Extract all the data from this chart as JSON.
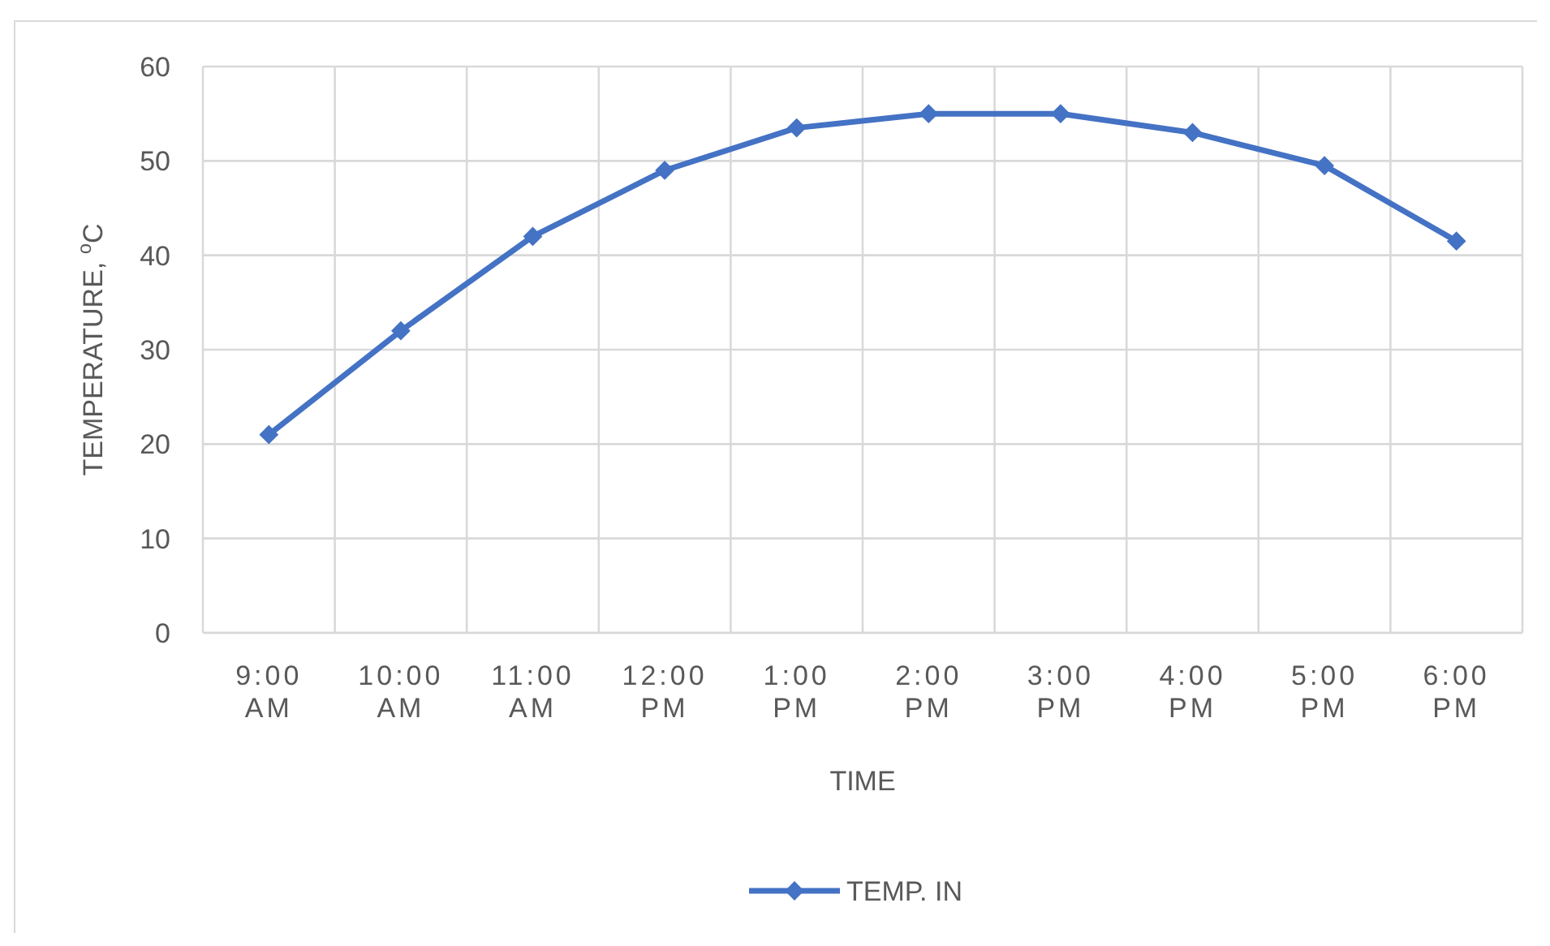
{
  "chart_data": {
    "type": "line",
    "xlabel": "TIME",
    "ylabel": "TEMPERATURE, $^{o}$C",
    "categories": [
      "9:00 AM",
      "10:00 AM",
      "11:00 AM",
      "12:00 PM",
      "1:00 PM",
      "2:00 PM",
      "3:00 PM",
      "4:00 PM",
      "5:00 PM",
      "6:00 PM"
    ],
    "series": [
      {
        "name": "TEMP. IN",
        "color": "#4472c4",
        "values": [
          21,
          32,
          42,
          49,
          53.5,
          55,
          55,
          53,
          49.5,
          41.5
        ]
      }
    ],
    "ylim": [
      0,
      60
    ],
    "yticks": [
      0,
      10,
      20,
      30,
      40,
      50,
      60
    ],
    "grid": true,
    "legend": "bottom",
    "marker": "diamond",
    "line_style": "solid"
  }
}
